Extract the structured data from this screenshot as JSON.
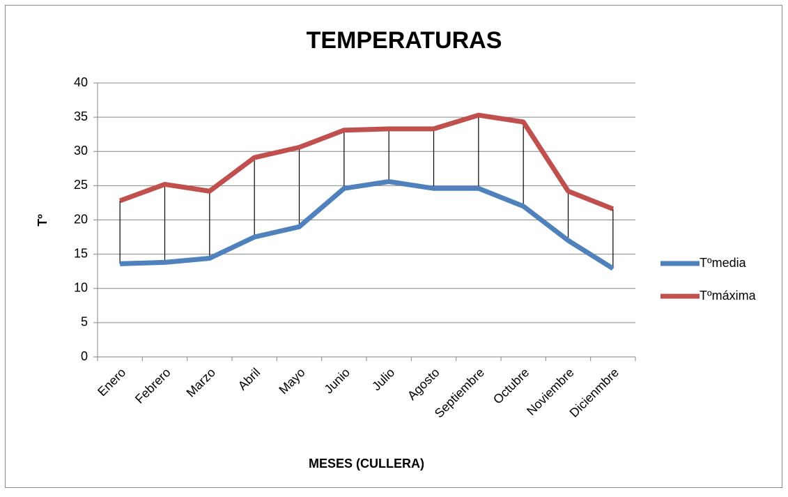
{
  "chart_data": {
    "type": "line",
    "title": "TEMPERATURAS",
    "x_label": "MESES (CULLERA)",
    "y_label": "Tº",
    "categories": [
      "Enero",
      "Febrero",
      "Marzo",
      "Abril",
      "Mayo",
      "Junio",
      "Julio",
      "Agosto",
      "Septiembre",
      "Octubre",
      "Noviembre",
      "Dicienmbre"
    ],
    "series": [
      {
        "name": "Tºmedia",
        "color": "#4f81bd",
        "values": [
          13.6,
          13.8,
          14.4,
          17.5,
          19.0,
          24.6,
          25.6,
          24.6,
          24.6,
          22.0,
          17.0,
          12.9
        ]
      },
      {
        "name": "Tºmáxima",
        "color": "#c0504d",
        "values": [
          22.8,
          25.2,
          24.2,
          29.1,
          30.6,
          33.1,
          33.3,
          33.3,
          35.3,
          34.3,
          24.2,
          21.6
        ]
      }
    ],
    "high_low_lines": true,
    "ylim": [
      0,
      40
    ],
    "yticks": [
      0,
      5,
      10,
      15,
      20,
      25,
      30,
      35,
      40
    ],
    "grid": true,
    "legend": "right"
  }
}
